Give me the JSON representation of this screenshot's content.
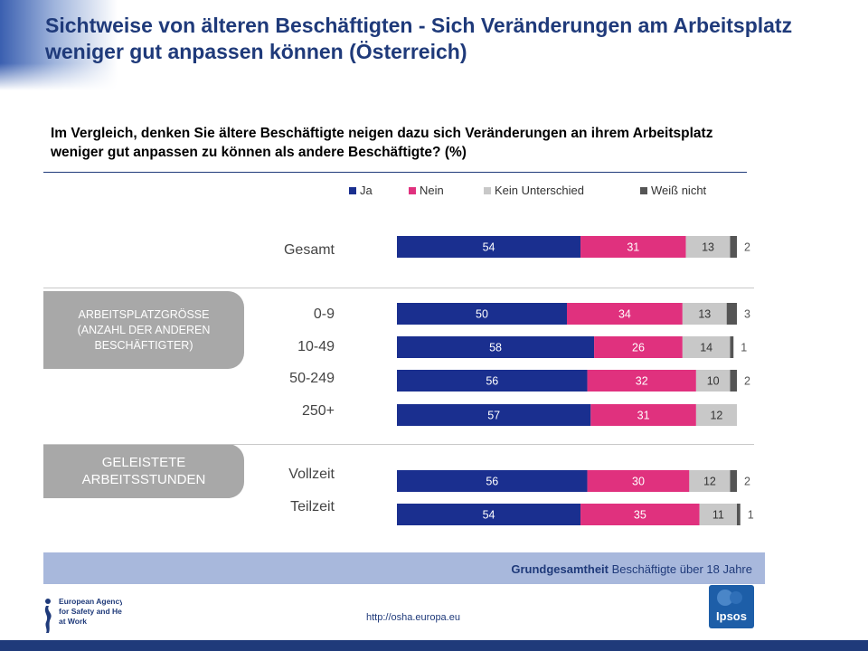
{
  "header": {
    "title": "Sichtweise von älteren Beschäftigten - Sich Veränderungen am Arbeitsplatz weniger gut anpassen können (Österreich)",
    "question": "Im Vergleich, denken Sie ältere Beschäftigte neigen dazu sich Veränderungen an ihrem Arbeitsplatz weniger gut anpassen zu können  als andere Beschäftigte? (%)"
  },
  "groups": {
    "size_label": "ARBEITSPLATZGRÖSSE (ANZAHL DER ANDEREN BESCHÄFTIGTER)",
    "hours_label": "GELEISTETE ARBEITSSTUNDEN"
  },
  "colors": {
    "ja": "#1a2f8f",
    "nein": "#e0317e",
    "kein": "#c8c8c8",
    "weiss": "#555555"
  },
  "chart_data": {
    "type": "bar",
    "orientation": "horizontal",
    "stacked": true,
    "title": "",
    "xlim": [
      0,
      100
    ],
    "legend_position": "top",
    "categories": [
      "Gesamt",
      "0-9",
      "10-49",
      "50-249",
      "250+",
      "Vollzeit",
      "Teilzeit"
    ],
    "series": [
      {
        "name": "Ja",
        "values": [
          54,
          50,
          58,
          56,
          57,
          56,
          54
        ]
      },
      {
        "name": "Nein",
        "values": [
          31,
          34,
          26,
          32,
          31,
          30,
          35
        ]
      },
      {
        "name": "Kein Unterschied",
        "values": [
          13,
          13,
          14,
          10,
          12,
          12,
          11
        ]
      },
      {
        "name": "Weiß nicht",
        "values": [
          2,
          3,
          1,
          2,
          null,
          2,
          1
        ]
      }
    ]
  },
  "footer": {
    "base_label": "Grundgesamtheit",
    "base_value": "Beschäftigte über 18 Jahre",
    "url": "http://osha.europa.eu",
    "agency_lines": [
      "European Agency",
      "for Safety and Health",
      "at Work"
    ],
    "ipsos": "Ipsos"
  }
}
